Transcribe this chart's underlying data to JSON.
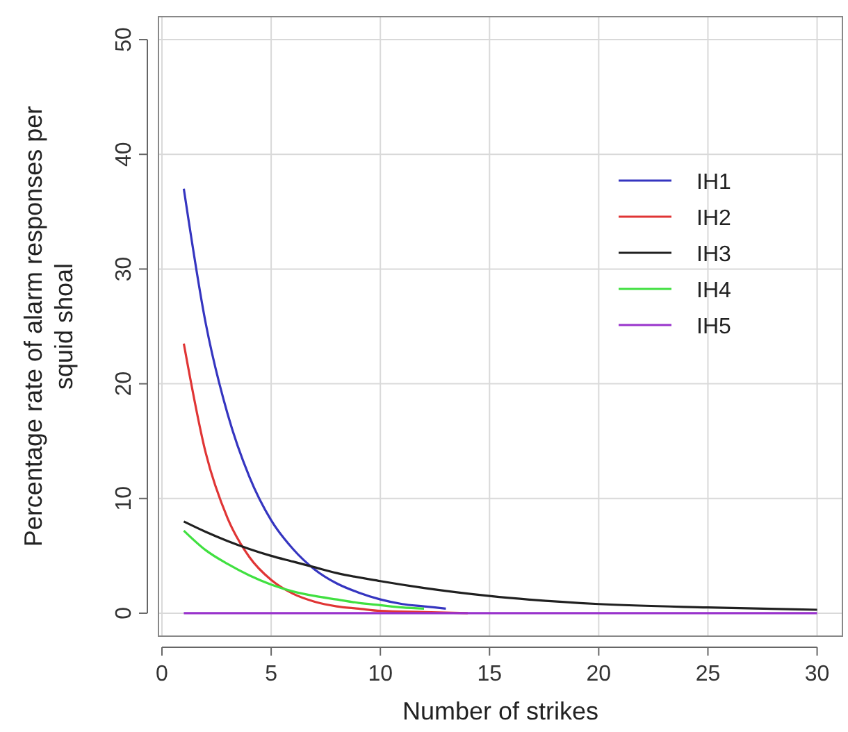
{
  "chart_data": {
    "type": "line",
    "xlabel": "Number of strikes",
    "ylabel": "Percentage rate of alarm responses per squid shoal",
    "xlim": [
      -0.16,
      31.16
    ],
    "ylim": [
      -2,
      52
    ],
    "xticks": [
      0,
      5,
      10,
      15,
      20,
      25,
      30
    ],
    "yticks": [
      0,
      10,
      20,
      30,
      40,
      50
    ],
    "grid": true,
    "legend": "right",
    "marker": "none",
    "line_style": "solid",
    "series": [
      {
        "name": "IH1",
        "color": "#3535c0",
        "x": [
          1,
          2,
          3,
          4,
          5,
          6,
          7,
          8,
          9,
          10,
          11,
          12,
          13
        ],
        "values": [
          37,
          25.3,
          17.4,
          11.9,
          8.1,
          5.6,
          3.8,
          2.6,
          1.8,
          1.2,
          0.8,
          0.6,
          0.4
        ]
      },
      {
        "name": "IH2",
        "color": "#e03535",
        "x": [
          1,
          2,
          3,
          4,
          5,
          6,
          7,
          8,
          9,
          10,
          12,
          14
        ],
        "values": [
          23.5,
          14,
          8.3,
          4.9,
          2.9,
          1.7,
          1,
          0.6,
          0.4,
          0.2,
          0.1,
          0
        ]
      },
      {
        "name": "IH3",
        "color": "#202020",
        "x": [
          1,
          2,
          3,
          4,
          5,
          6,
          7,
          8,
          10,
          12,
          15,
          20,
          25,
          30
        ],
        "values": [
          8,
          7.1,
          6.3,
          5.6,
          5,
          4.5,
          4,
          3.5,
          2.8,
          2.2,
          1.5,
          0.8,
          0.5,
          0.3
        ]
      },
      {
        "name": "IH4",
        "color": "#40e040",
        "x": [
          1,
          2,
          3,
          4,
          5,
          6,
          7,
          8,
          9,
          10,
          11,
          12
        ],
        "values": [
          7.2,
          5.5,
          4.3,
          3.3,
          2.5,
          1.9,
          1.5,
          1.2,
          0.9,
          0.7,
          0.5,
          0.4
        ]
      },
      {
        "name": "IH5",
        "color": "#9933cc",
        "x": [
          1,
          30
        ],
        "values": [
          0,
          0
        ]
      }
    ]
  }
}
